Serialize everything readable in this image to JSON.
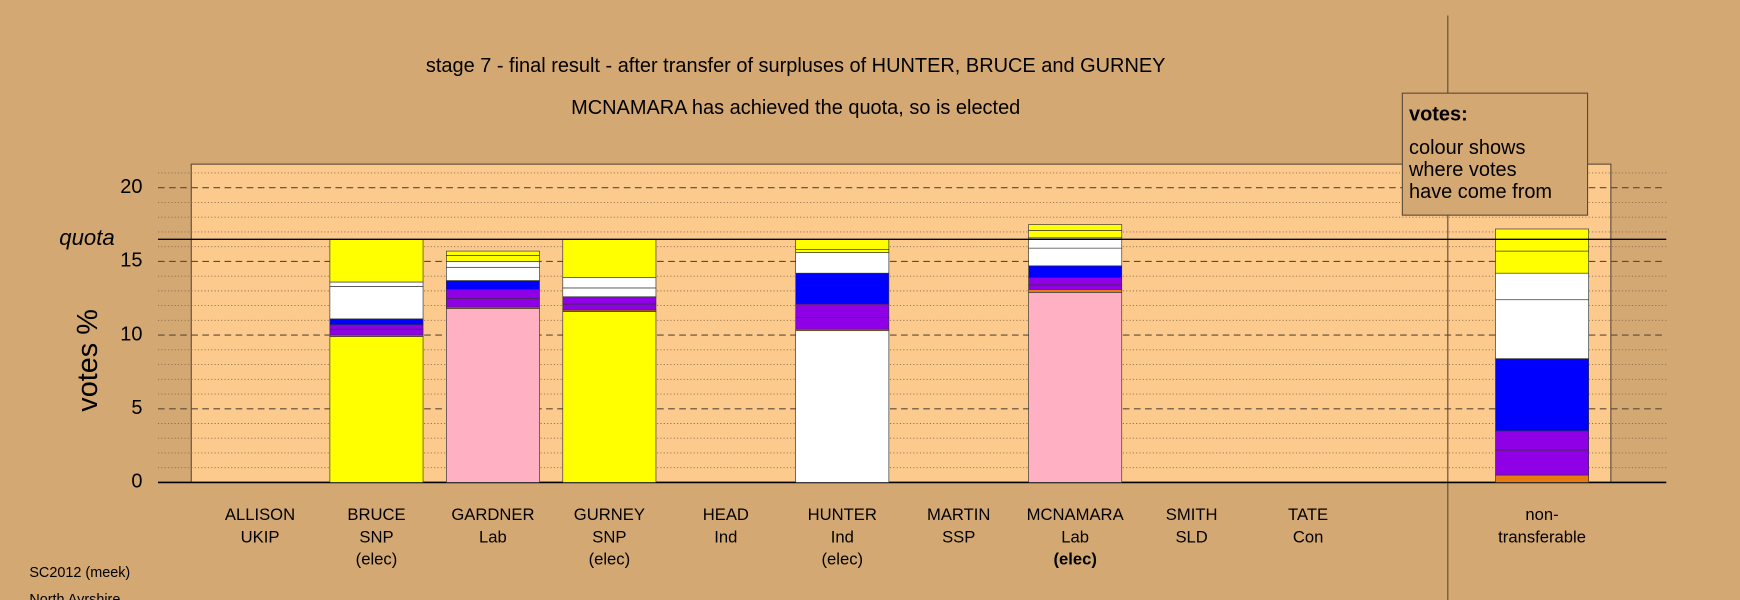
{
  "chart_data": {
    "type": "stacked-bar",
    "title": "stage 7 - final result - after transfer of surpluses of HUNTER, BRUCE and GURNEY",
    "subtitle": "MCNAMARA has achieved the quota, so is elected",
    "y_label": "votes %",
    "ylim": [
      0,
      21.6
    ],
    "yticks": [
      0,
      5,
      10,
      15,
      20
    ],
    "minor_yticks": [
      1,
      2,
      3,
      4,
      6,
      7,
      8,
      9,
      11,
      12,
      13,
      14,
      16,
      17,
      18,
      19,
      21
    ],
    "quota": 16.5,
    "quota_label": "quota",
    "legend": {
      "title": "votes:",
      "lines": [
        "colour shows",
        "where votes",
        "have come from"
      ]
    },
    "footer": [
      "SC2012 (meek)",
      "North Ayrshire"
    ],
    "bars": [
      {
        "label": [
          "ALLISON",
          "UKIP"
        ],
        "segments": []
      },
      {
        "label": [
          "BRUCE",
          "SNP",
          "(elec)"
        ],
        "segments": [
          {
            "value": 9.9,
            "color": "#ffff00"
          },
          {
            "value": 0.1,
            "color": "#e87a10"
          },
          {
            "value": 0.4,
            "color": "#8f00e6"
          },
          {
            "value": 0.3,
            "color": "#8f00e6"
          },
          {
            "value": 0.4,
            "color": "#0000ff"
          },
          {
            "value": 2.2,
            "color": "#ffffff"
          },
          {
            "value": 0.3,
            "color": "#ffffff"
          },
          {
            "value": 2.9,
            "color": "#ffff00"
          }
        ]
      },
      {
        "label": [
          "GARDNER",
          "Lab"
        ],
        "segments": [
          {
            "value": 11.8,
            "color": "#ffb0c2"
          },
          {
            "value": 0.1,
            "color": "#e87a10"
          },
          {
            "value": 0.6,
            "color": "#8f00e6"
          },
          {
            "value": 0.6,
            "color": "#8f00e6"
          },
          {
            "value": 0.6,
            "color": "#0000ff"
          },
          {
            "value": 0.9,
            "color": "#ffffff"
          },
          {
            "value": 0.4,
            "color": "#ffffff"
          },
          {
            "value": 0.4,
            "color": "#ffff00"
          },
          {
            "value": 0.3,
            "color": "#ffff00"
          }
        ]
      },
      {
        "label": [
          "GURNEY",
          "SNP",
          "(elec)"
        ],
        "segments": [
          {
            "value": 11.6,
            "color": "#ffff00"
          },
          {
            "value": 0.1,
            "color": "#e87a10"
          },
          {
            "value": 0.4,
            "color": "#8f00e6"
          },
          {
            "value": 0.5,
            "color": "#8f00e6"
          },
          {
            "value": 0.6,
            "color": "#ffffff"
          },
          {
            "value": 0.7,
            "color": "#ffffff"
          },
          {
            "value": 2.6,
            "color": "#ffff00"
          }
        ]
      },
      {
        "label": [
          "HEAD",
          "Ind"
        ],
        "segments": []
      },
      {
        "label": [
          "HUNTER",
          "Ind",
          "(elec)"
        ],
        "segments": [
          {
            "value": 10.3,
            "color": "#ffffff"
          },
          {
            "value": 0.1,
            "color": "#e87a10"
          },
          {
            "value": 0.8,
            "color": "#8f00e6"
          },
          {
            "value": 0.9,
            "color": "#8f00e6"
          },
          {
            "value": 2.1,
            "color": "#0000ff"
          },
          {
            "value": 1.4,
            "color": "#ffffff"
          },
          {
            "value": 0.2,
            "color": "#ffff00"
          },
          {
            "value": 0.7,
            "color": "#ffff00"
          }
        ]
      },
      {
        "label": [
          "MARTIN",
          "SSP"
        ],
        "segments": []
      },
      {
        "label": [
          "MCNAMARA",
          "Lab",
          "(elec)"
        ],
        "bold_last": true,
        "segments": [
          {
            "value": 12.9,
            "color": "#ffb0c2"
          },
          {
            "value": 0.2,
            "color": "#e87a10"
          },
          {
            "value": 0.3,
            "color": "#8f00e6"
          },
          {
            "value": 0.5,
            "color": "#8f00e6"
          },
          {
            "value": 0.8,
            "color": "#0000ff"
          },
          {
            "value": 1.2,
            "color": "#ffffff"
          },
          {
            "value": 0.7,
            "color": "#ffffff"
          },
          {
            "value": 0.5,
            "color": "#ffff00"
          },
          {
            "value": 0.4,
            "color": "#ffff00"
          }
        ]
      },
      {
        "label": [
          "SMITH",
          "SLD"
        ],
        "segments": []
      },
      {
        "label": [
          "TATE",
          "Con"
        ],
        "segments": []
      },
      {
        "label": [
          "non-",
          "transferable"
        ],
        "separate": true,
        "segments": [
          {
            "value": 0.5,
            "color": "#e87a10"
          },
          {
            "value": 1.7,
            "color": "#8f00e6"
          },
          {
            "value": 1.3,
            "color": "#8f00e6"
          },
          {
            "value": 4.9,
            "color": "#0000ff"
          },
          {
            "value": 4.0,
            "color": "#ffffff"
          },
          {
            "value": 1.8,
            "color": "#ffffff"
          },
          {
            "value": 1.5,
            "color": "#ffff00"
          },
          {
            "value": 1.5,
            "color": "#ffff00"
          }
        ]
      }
    ]
  }
}
